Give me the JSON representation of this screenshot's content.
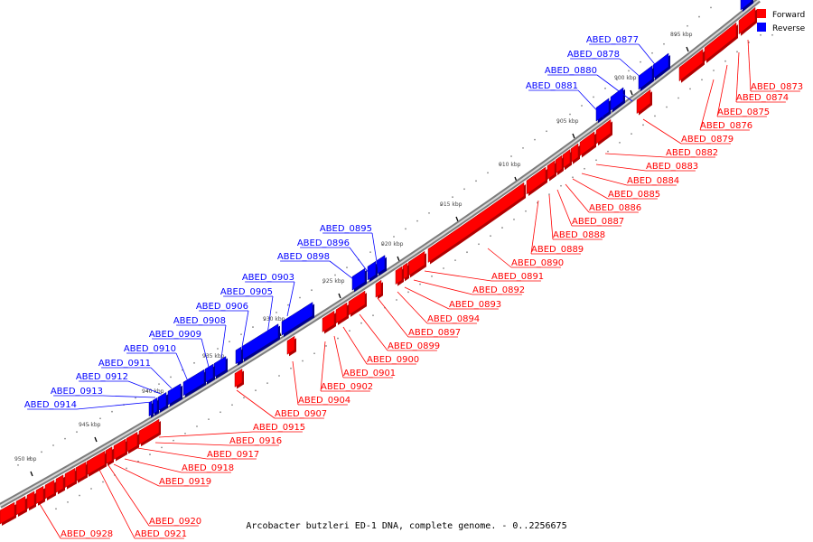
{
  "caption": "Arcobacter butzleri ED-1 DNA, complete genome. - 0..2256675",
  "legend": [
    {
      "name": "Forward",
      "color": "#ff0000"
    },
    {
      "name": "Reverse",
      "color": "#0000ff"
    }
  ],
  "colors": {
    "forward": "#ff0000",
    "reverse": "#0000ff",
    "forward_dark": "#b00000",
    "reverse_dark": "#00008c",
    "backbone": "#9a9a9a"
  },
  "ticks": [
    "895 kbp",
    "900 kbp",
    "905 kbp",
    "910 kbp",
    "915 kbp",
    "920 kbp",
    "925 kbp",
    "930 kbp",
    "935 kbp",
    "940 kbp",
    "945 kbp",
    "950 kbp"
  ],
  "reverse_genes": [
    "ABED_0877",
    "ABED_0878",
    "ABED_0880",
    "ABED_0881",
    "ABED_0895",
    "ABED_0896",
    "ABED_0898",
    "ABED_0903",
    "ABED_0905",
    "ABED_0906",
    "ABED_0908",
    "ABED_0909",
    "ABED_0910",
    "ABED_0911",
    "ABED_0912",
    "ABED_0913",
    "ABED_0914"
  ],
  "forward_genes": [
    "ABED_0873",
    "ABED_0874",
    "ABED_0875",
    "ABED_0876",
    "ABED_0879",
    "ABED_0882",
    "ABED_0883",
    "ABED_0884",
    "ABED_0885",
    "ABED_0886",
    "ABED_0887",
    "ABED_0888",
    "ABED_0889",
    "ABED_0890",
    "ABED_0891",
    "ABED_0892",
    "ABED_0893",
    "ABED_0894",
    "ABED_0897",
    "ABED_0899",
    "ABED_0900",
    "ABED_0901",
    "ABED_0902",
    "ABED_0904",
    "ABED_0907",
    "ABED_0915",
    "ABED_0916",
    "ABED_0917",
    "ABED_0918",
    "ABED_0919",
    "ABED_0920",
    "ABED_0921",
    "ABED_0928"
  ]
}
